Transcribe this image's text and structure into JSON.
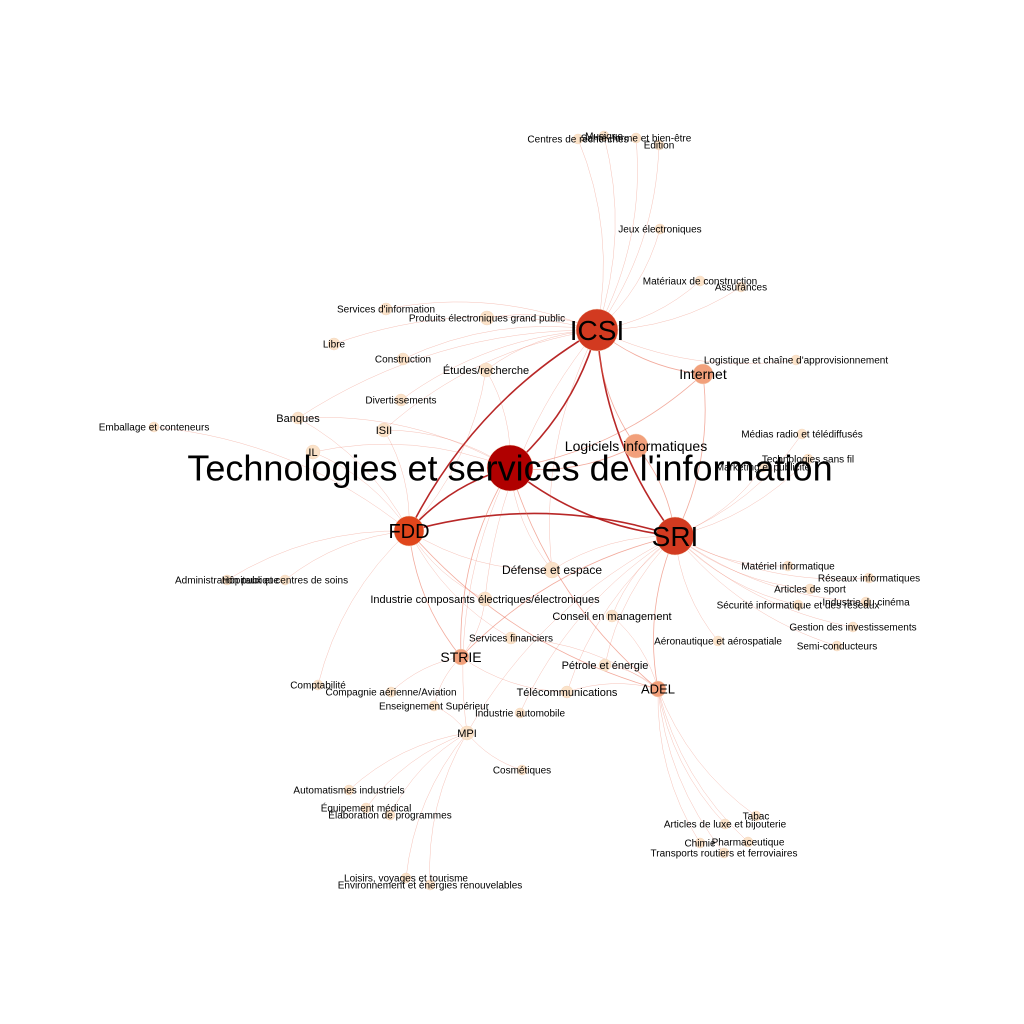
{
  "graph": {
    "colors": {
      "node_high": "#b00000",
      "node_mid": "#e0461c",
      "node_low": "#f2a07b",
      "node_min": "#fbe2c8",
      "edge": "#e8644a",
      "background": "#ffffff"
    },
    "nodes": [
      {
        "id": "tsi",
        "label": "Technologies et services de l'information",
        "weight": 1.0
      },
      {
        "id": "icsi",
        "label": "ICSI",
        "weight": 0.85
      },
      {
        "id": "sri",
        "label": "SRI",
        "weight": 0.75
      },
      {
        "id": "fdd",
        "label": "FDD",
        "weight": 0.55
      },
      {
        "id": "strie",
        "label": "STRIE",
        "weight": 0.3
      },
      {
        "id": "adel",
        "label": "ADEL",
        "weight": 0.28
      },
      {
        "id": "internet",
        "label": "Internet",
        "weight": 0.25
      },
      {
        "id": "logiciels",
        "label": "Logiciels informatiques",
        "weight": 0.25
      },
      {
        "id": "defense",
        "label": "Défense et espace",
        "weight": 0.18
      },
      {
        "id": "mpi",
        "label": "MPI",
        "weight": 0.15
      },
      {
        "id": "il",
        "label": "IL",
        "weight": 0.12
      },
      {
        "id": "isii",
        "label": "ISII",
        "weight": 0.12
      },
      {
        "id": "banques",
        "label": "Banques",
        "weight": 0.1
      },
      {
        "id": "etudes",
        "label": "Études/recherche",
        "weight": 0.1
      },
      {
        "id": "telecom",
        "label": "Télécommunications",
        "weight": 0.1
      },
      {
        "id": "petrole",
        "label": "Pétrole et énergie",
        "weight": 0.1
      },
      {
        "id": "composants",
        "label": "Industrie composants électriques/électroniques",
        "weight": 0.1
      },
      {
        "id": "conseil",
        "label": "Conseil en management",
        "weight": 0.08
      },
      {
        "id": "servfin",
        "label": "Services financiers",
        "weight": 0.08
      },
      {
        "id": "produits",
        "label": "Produits électroniques grand public",
        "weight": 0.08
      },
      {
        "id": "construction",
        "label": "Construction",
        "weight": 0.06
      },
      {
        "id": "divert",
        "label": "Divertissements",
        "weight": 0.06
      },
      {
        "id": "servinfo",
        "label": "Services d'information",
        "weight": 0.06
      },
      {
        "id": "libre",
        "label": "Libre",
        "weight": 0.06
      },
      {
        "id": "emballage",
        "label": "Emballage et conteneurs",
        "weight": 0.05
      },
      {
        "id": "admin",
        "label": "Administration publique",
        "weight": 0.05
      },
      {
        "id": "hopitaux",
        "label": "Hôpitaux et centres de soins",
        "weight": 0.05
      },
      {
        "id": "comptab",
        "label": "Comptabilité",
        "weight": 0.05
      },
      {
        "id": "aviation",
        "label": "Compagnie aérienne/Aviation",
        "weight": 0.05
      },
      {
        "id": "enseign",
        "label": "Enseignement Supérieur",
        "weight": 0.05
      },
      {
        "id": "auto",
        "label": "Industrie automobile",
        "weight": 0.05
      },
      {
        "id": "cosmet",
        "label": "Cosmétiques",
        "weight": 0.05
      },
      {
        "id": "automat",
        "label": "Automatismes industriels",
        "weight": 0.05
      },
      {
        "id": "equipmed",
        "label": "Équipement médical",
        "weight": 0.05
      },
      {
        "id": "elabprog",
        "label": "Élaboration de programmes",
        "weight": 0.05
      },
      {
        "id": "loisirs",
        "label": "Loisirs, voyages et tourisme",
        "weight": 0.05
      },
      {
        "id": "environ",
        "label": "Environnement et énergies renouvelables",
        "weight": 0.05
      },
      {
        "id": "luxe",
        "label": "Articles de luxe et bijouterie",
        "weight": 0.05
      },
      {
        "id": "tabac",
        "label": "Tabac",
        "weight": 0.05
      },
      {
        "id": "chimie",
        "label": "Chimie",
        "weight": 0.05
      },
      {
        "id": "pharma",
        "label": "Pharmaceutique",
        "weight": 0.05
      },
      {
        "id": "transports",
        "label": "Transports routiers et ferroviaires",
        "weight": 0.05
      },
      {
        "id": "aero",
        "label": "Aéronautique et aérospatiale",
        "weight": 0.05
      },
      {
        "id": "semicond",
        "label": "Semi-conducteurs",
        "weight": 0.05
      },
      {
        "id": "gestinv",
        "label": "Gestion des investissements",
        "weight": 0.05
      },
      {
        "id": "secinfo",
        "label": "Sécurité informatique et des réseaux",
        "weight": 0.05
      },
      {
        "id": "cinema",
        "label": "Industrie du cinéma",
        "weight": 0.05
      },
      {
        "id": "sport",
        "label": "Articles de sport",
        "weight": 0.05
      },
      {
        "id": "reseaux",
        "label": "Réseaux informatiques",
        "weight": 0.05
      },
      {
        "id": "materiel",
        "label": "Matériel informatique",
        "weight": 0.05
      },
      {
        "id": "marketing",
        "label": "Marketing et publicité",
        "weight": 0.05
      },
      {
        "id": "sansfil",
        "label": "Technologies sans fil",
        "weight": 0.05
      },
      {
        "id": "medias",
        "label": "Médias radio et télédiffusés",
        "weight": 0.05
      },
      {
        "id": "logistique",
        "label": "Logistique et chaîne d'approvisionnement",
        "weight": 0.05
      },
      {
        "id": "assurances",
        "label": "Assurances",
        "weight": 0.05
      },
      {
        "id": "materiaux",
        "label": "Matériaux de construction",
        "weight": 0.05
      },
      {
        "id": "jeux",
        "label": "Jeux électroniques",
        "weight": 0.05
      },
      {
        "id": "centres",
        "label": "Centres de recherches",
        "weight": 0.05
      },
      {
        "id": "musique",
        "label": "Musique",
        "weight": 0.05
      },
      {
        "id": "sante",
        "label": "Santé, forme et bien-être",
        "weight": 0.05
      },
      {
        "id": "edition",
        "label": "Édition",
        "weight": 0.05
      }
    ],
    "edges": [
      [
        "tsi",
        "icsi"
      ],
      [
        "tsi",
        "sri"
      ],
      [
        "tsi",
        "fdd"
      ],
      [
        "icsi",
        "sri"
      ],
      [
        "icsi",
        "fdd"
      ],
      [
        "sri",
        "fdd"
      ],
      [
        "tsi",
        "strie"
      ],
      [
        "tsi",
        "adel"
      ],
      [
        "tsi",
        "mpi"
      ],
      [
        "tsi",
        "logiciels"
      ],
      [
        "tsi",
        "internet"
      ],
      [
        "tsi",
        "il"
      ],
      [
        "tsi",
        "isii"
      ],
      [
        "tsi",
        "defense"
      ],
      [
        "tsi",
        "banques"
      ],
      [
        "tsi",
        "etudes"
      ],
      [
        "icsi",
        "produits"
      ],
      [
        "icsi",
        "etudes"
      ],
      [
        "icsi",
        "jeux"
      ],
      [
        "icsi",
        "materiaux"
      ],
      [
        "icsi",
        "assurances"
      ],
      [
        "icsi",
        "centres"
      ],
      [
        "icsi",
        "musique"
      ],
      [
        "icsi",
        "sante"
      ],
      [
        "icsi",
        "edition"
      ],
      [
        "icsi",
        "logistique"
      ],
      [
        "icsi",
        "internet"
      ],
      [
        "icsi",
        "logiciels"
      ],
      [
        "icsi",
        "servinfo"
      ],
      [
        "icsi",
        "construction"
      ],
      [
        "icsi",
        "divert"
      ],
      [
        "icsi",
        "libre"
      ],
      [
        "icsi",
        "isii"
      ],
      [
        "icsi",
        "banques"
      ],
      [
        "icsi",
        "defense"
      ],
      [
        "icsi",
        "composants"
      ],
      [
        "sri",
        "materiel"
      ],
      [
        "sri",
        "reseaux"
      ],
      [
        "sri",
        "sport"
      ],
      [
        "sri",
        "cinema"
      ],
      [
        "sri",
        "secinfo"
      ],
      [
        "sri",
        "gestinv"
      ],
      [
        "sri",
        "semicond"
      ],
      [
        "sri",
        "aero"
      ],
      [
        "sri",
        "telecom"
      ],
      [
        "sri",
        "petrole"
      ],
      [
        "sri",
        "conseil"
      ],
      [
        "sri",
        "sansfil"
      ],
      [
        "sri",
        "marketing"
      ],
      [
        "sri",
        "medias"
      ],
      [
        "sri",
        "internet"
      ],
      [
        "sri",
        "logiciels"
      ],
      [
        "sri",
        "defense"
      ],
      [
        "sri",
        "adel"
      ],
      [
        "sri",
        "strie"
      ],
      [
        "sri",
        "mpi"
      ],
      [
        "sri",
        "auto"
      ],
      [
        "fdd",
        "admin"
      ],
      [
        "fdd",
        "hopitaux"
      ],
      [
        "fdd",
        "comptab"
      ],
      [
        "fdd",
        "il"
      ],
      [
        "fdd",
        "isii"
      ],
      [
        "fdd",
        "banques"
      ],
      [
        "fdd",
        "servfin"
      ],
      [
        "fdd",
        "composants"
      ],
      [
        "fdd",
        "strie"
      ],
      [
        "fdd",
        "defense"
      ],
      [
        "fdd",
        "emballage"
      ],
      [
        "fdd",
        "etudes"
      ],
      [
        "fdd",
        "adel"
      ],
      [
        "strie",
        "aviation"
      ],
      [
        "strie",
        "enseign"
      ],
      [
        "strie",
        "telecom"
      ],
      [
        "strie",
        "composants"
      ],
      [
        "mpi",
        "automat"
      ],
      [
        "mpi",
        "equipmed"
      ],
      [
        "mpi",
        "elabprog"
      ],
      [
        "mpi",
        "loisirs"
      ],
      [
        "mpi",
        "environ"
      ],
      [
        "mpi",
        "cosmet"
      ],
      [
        "mpi",
        "enseign"
      ],
      [
        "adel",
        "luxe"
      ],
      [
        "adel",
        "tabac"
      ],
      [
        "adel",
        "chimie"
      ],
      [
        "adel",
        "pharma"
      ],
      [
        "adel",
        "transports"
      ],
      [
        "adel",
        "petrole"
      ],
      [
        "adel",
        "telecom"
      ],
      [
        "adel",
        "conseil"
      ],
      [
        "adel",
        "servfin"
      ]
    ]
  }
}
